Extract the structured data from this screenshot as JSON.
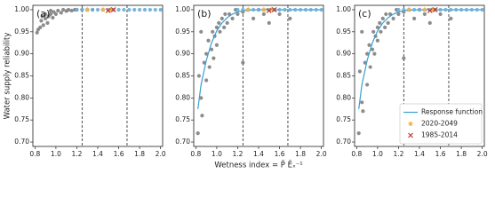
{
  "chart_data": [
    {
      "type": "scatter",
      "panel_label": "(a)",
      "ylabel": "Water supply reliability",
      "xlim": [
        0.78,
        2.02
      ],
      "ylim": [
        0.69,
        1.01
      ],
      "xticks": [
        0.8,
        {
          "value": 1,
          "label": "1.0"
        },
        1.2,
        1.4,
        1.6,
        1.8,
        {
          "value": 2,
          "label": "2.0"
        }
      ],
      "yticks": [
        {
          "value": 0.7,
          "label": "0.70"
        },
        0.75,
        {
          "value": 0.8,
          "label": "0.80"
        },
        0.85,
        {
          "value": 0.9,
          "label": "0.90"
        },
        0.95,
        {
          "value": 1,
          "label": "1.00"
        }
      ],
      "vlines": [
        1.25,
        1.68
      ],
      "series": [
        {
          "color": "#7f7f7f",
          "marker": "circle",
          "x": [
            0.82,
            0.83,
            0.85,
            0.86,
            0.88,
            0.9,
            0.92,
            0.93,
            0.95,
            0.97,
            0.98,
            1.0,
            1.02,
            1.05,
            1.07,
            1.1,
            1.12,
            1.15,
            1.18,
            1.2,
            1.25,
            1.3,
            1.35,
            0.87,
            0.9,
            0.95
          ],
          "values": [
            0.948,
            0.955,
            0.96,
            0.975,
            0.965,
            0.98,
            0.97,
            0.985,
            0.99,
            0.982,
            0.995,
            0.99,
            0.998,
            0.993,
            1.0,
            0.997,
            1.0,
            0.998,
            1.0,
            1.0,
            1.0,
            1.0,
            1.0,
            0.985,
            0.99,
            0.998
          ]
        },
        {
          "color": "#6baed6",
          "marker": "circle",
          "x": [
            1.2,
            1.25,
            1.3,
            1.35,
            1.4,
            1.45,
            1.5,
            1.55,
            1.6,
            1.65,
            1.7,
            1.75,
            1.8,
            1.85,
            1.9,
            1.95,
            2.0
          ],
          "values": [
            1,
            1,
            1,
            1,
            1,
            1,
            1,
            1,
            1,
            1,
            1,
            1,
            1,
            1,
            1,
            1,
            1
          ]
        },
        {
          "color": "#f5b041",
          "marker": "star",
          "x": [
            1.3,
            1.45,
            1.52
          ],
          "values": [
            1,
            1,
            1
          ]
        },
        {
          "color": "#c0392b",
          "marker": "x",
          "x": [
            1.5,
            1.55
          ],
          "values": [
            0.998,
            1
          ]
        }
      ]
    },
    {
      "type": "scatter",
      "panel_label": "(b)",
      "xlabel": "Wetness index = P̄ Ēₓ⁻¹",
      "xlim": [
        0.78,
        2.02
      ],
      "ylim": [
        0.69,
        1.01
      ],
      "xticks": [
        0.8,
        {
          "value": 1,
          "label": "1.0"
        },
        1.2,
        1.4,
        1.6,
        1.8,
        {
          "value": 2,
          "label": "2.0"
        }
      ],
      "yticks": [
        {
          "value": 0.7,
          "label": "0.70"
        },
        0.75,
        {
          "value": 0.8,
          "label": "0.80"
        },
        0.85,
        {
          "value": 0.9,
          "label": "0.90"
        },
        0.95,
        {
          "value": 1,
          "label": "1.00"
        }
      ],
      "vlines": [
        1.25,
        1.68
      ],
      "series": [
        {
          "color": "#7f7f7f",
          "marker": "circle",
          "x": [
            0.82,
            0.83,
            0.85,
            0.86,
            0.88,
            0.9,
            0.9,
            0.92,
            0.93,
            0.95,
            0.96,
            0.97,
            0.98,
            1.0,
            1.0,
            1.02,
            1.03,
            1.05,
            1.07,
            1.08,
            1.1,
            1.12,
            1.15,
            1.18,
            1.2,
            1.25,
            1.25,
            1.3,
            1.35,
            1.4,
            1.45,
            1.5,
            1.6,
            1.7,
            0.85
          ],
          "values": [
            0.72,
            0.85,
            0.8,
            0.76,
            0.88,
            0.84,
            0.9,
            0.93,
            0.87,
            0.91,
            0.95,
            0.89,
            0.94,
            0.96,
            0.92,
            0.97,
            0.95,
            0.98,
            0.96,
            0.99,
            0.97,
            0.99,
            0.98,
            1.0,
            0.99,
            0.88,
            0.995,
            1.0,
            0.98,
            1.0,
            0.99,
            0.97,
            0.99,
            0.98,
            0.95
          ]
        },
        {
          "color": "#3a9fd1",
          "marker": "line",
          "x": [
            0.82,
            0.85,
            0.9,
            0.95,
            1.0,
            1.05,
            1.1,
            1.15,
            1.2,
            1.25,
            1.3,
            1.4,
            1.6,
            1.8,
            2.0
          ],
          "values": [
            0.775,
            0.83,
            0.885,
            0.925,
            0.952,
            0.97,
            0.982,
            0.99,
            0.995,
            0.998,
            0.999,
            1,
            1,
            1,
            1
          ]
        },
        {
          "color": "#6baed6",
          "marker": "circle",
          "x": [
            1.2,
            1.25,
            1.3,
            1.35,
            1.4,
            1.45,
            1.5,
            1.55,
            1.6,
            1.65,
            1.7,
            1.75,
            1.8,
            1.85,
            1.9,
            1.95,
            2.0
          ],
          "values": [
            1,
            1,
            1,
            1,
            1,
            1,
            1,
            1,
            1,
            1,
            1,
            1,
            1,
            1,
            1,
            1,
            1
          ]
        },
        {
          "color": "#f5b041",
          "marker": "star",
          "x": [
            1.3,
            1.45,
            1.52
          ],
          "values": [
            1,
            1,
            1
          ]
        },
        {
          "color": "#c0392b",
          "marker": "x",
          "x": [
            1.5,
            1.55
          ],
          "values": [
            0.998,
            1
          ]
        }
      ]
    },
    {
      "type": "scatter",
      "panel_label": "(c)",
      "legend": "lower right",
      "xlim": [
        0.78,
        2.02
      ],
      "ylim": [
        0.69,
        1.01
      ],
      "xticks": [
        0.8,
        {
          "value": 1,
          "label": "1.0"
        },
        1.2,
        1.4,
        1.6,
        1.8,
        {
          "value": 2,
          "label": "2.0"
        }
      ],
      "yticks": [
        {
          "value": 0.7,
          "label": "0.70"
        },
        0.75,
        {
          "value": 0.8,
          "label": "0.80"
        },
        0.85,
        {
          "value": 0.9,
          "label": "0.90"
        },
        0.95,
        {
          "value": 1,
          "label": "1.00"
        }
      ],
      "vlines": [
        1.25,
        1.68
      ],
      "series": [
        {
          "color": "#7f7f7f",
          "marker": "circle",
          "x": [
            0.82,
            0.83,
            0.85,
            0.86,
            0.88,
            0.9,
            0.9,
            0.92,
            0.93,
            0.95,
            0.96,
            0.97,
            0.98,
            1.0,
            1.0,
            1.02,
            1.03,
            1.05,
            1.07,
            1.08,
            1.1,
            1.12,
            1.15,
            1.18,
            1.2,
            1.25,
            1.25,
            1.3,
            1.35,
            1.4,
            1.45,
            1.5,
            1.6,
            1.7,
            0.85
          ],
          "values": [
            0.72,
            0.86,
            0.79,
            0.77,
            0.88,
            0.83,
            0.9,
            0.92,
            0.87,
            0.91,
            0.95,
            0.9,
            0.94,
            0.96,
            0.93,
            0.97,
            0.95,
            0.98,
            0.96,
            0.99,
            0.97,
            0.99,
            0.98,
            1.0,
            0.99,
            0.89,
            0.995,
            1.0,
            0.98,
            1.0,
            0.99,
            0.97,
            0.99,
            0.98,
            0.95
          ]
        },
        {
          "name": "Response function",
          "color": "#3a9fd1",
          "marker": "line",
          "x": [
            0.82,
            0.85,
            0.9,
            0.95,
            1.0,
            1.05,
            1.1,
            1.15,
            1.2,
            1.25,
            1.3,
            1.4,
            1.6,
            1.8,
            2.0
          ],
          "values": [
            0.775,
            0.83,
            0.885,
            0.925,
            0.952,
            0.97,
            0.982,
            0.99,
            0.995,
            0.998,
            0.999,
            1,
            1,
            1,
            1
          ]
        },
        {
          "color": "#6baed6",
          "marker": "circle",
          "x": [
            1.2,
            1.25,
            1.3,
            1.35,
            1.4,
            1.45,
            1.5,
            1.55,
            1.6,
            1.65,
            1.7,
            1.75,
            1.8,
            1.85,
            1.9,
            1.95,
            2.0
          ],
          "values": [
            1,
            1,
            1,
            1,
            1,
            1,
            1,
            1,
            1,
            1,
            1,
            1,
            1,
            1,
            1,
            1,
            1
          ]
        },
        {
          "name": "2020-2049",
          "color": "#f5b041",
          "marker": "star",
          "x": [
            1.3,
            1.45,
            1.52
          ],
          "values": [
            1,
            1,
            1
          ]
        },
        {
          "name": "1985-2014",
          "color": "#c0392b",
          "marker": "x",
          "x": [
            1.5,
            1.55
          ],
          "values": [
            0.998,
            1
          ]
        }
      ]
    }
  ]
}
